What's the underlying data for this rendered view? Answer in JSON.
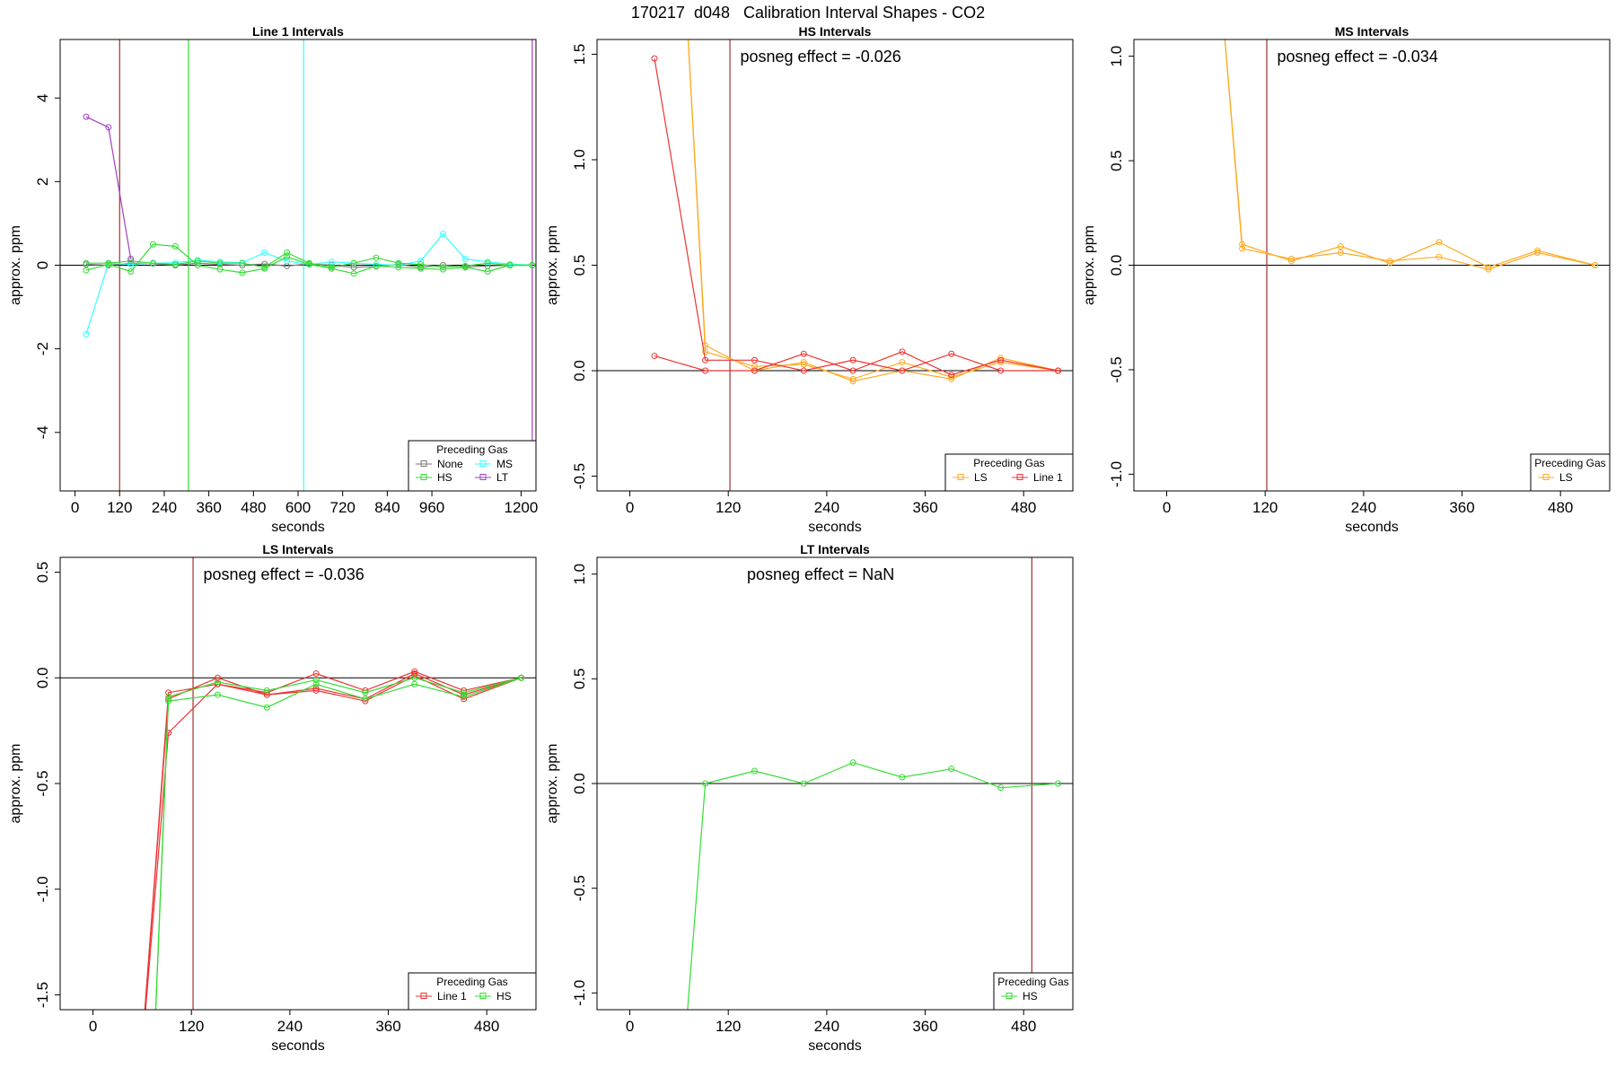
{
  "page_title": "170217  d048   Calibration Interval Shapes - CO2",
  "chart_data": [
    {
      "type": "line",
      "title": "Line 1 Intervals",
      "xlabel": "seconds",
      "ylabel": "approx. ppm",
      "xlim": [
        -40,
        1240
      ],
      "ylim": [
        -5.4,
        5.4
      ],
      "xticks": [
        0,
        120,
        240,
        360,
        480,
        600,
        720,
        840,
        960,
        1200
      ],
      "yticks": [
        -4,
        -2,
        0,
        2,
        4
      ],
      "annotation": "",
      "hline": 0,
      "vlines": [
        {
          "x": 120,
          "color": "#a03030"
        },
        {
          "x": 305,
          "color": "#33dd33"
        },
        {
          "x": 615,
          "color": "#33ffff"
        },
        {
          "x": 1230,
          "color": "#a040c0"
        }
      ],
      "legend": {
        "title": "Preceding Gas",
        "position": "bottom-right",
        "columns": 2,
        "entries": [
          "None",
          "MS",
          "HS",
          "LT"
        ]
      },
      "series": [
        {
          "name": "None",
          "color": "#777777",
          "x": [
            30,
            90,
            150,
            210,
            270,
            330,
            390,
            450,
            510,
            570,
            630,
            690,
            750,
            810,
            870,
            930,
            990,
            1050,
            1110,
            1170,
            1230
          ],
          "y": [
            0.02,
            0.0,
            0.05,
            0.04,
            0.0,
            0.05,
            0.02,
            0.0,
            0.03,
            -0.02,
            0.03,
            0.0,
            -0.05,
            -0.03,
            0.02,
            -0.05,
            0.0,
            -0.04,
            -0.02,
            0.0,
            0.0
          ]
        },
        {
          "name": "MS",
          "color": "#33ffff",
          "x": [
            30,
            90,
            150,
            210,
            270,
            330,
            390,
            450,
            510,
            570,
            630,
            690,
            750,
            810,
            870,
            930,
            990,
            1050,
            1110,
            1170,
            1230
          ],
          "y": [
            -1.65,
            0.05,
            0.02,
            0.05,
            0.06,
            0.12,
            0.08,
            0.06,
            0.3,
            0.1,
            0.02,
            0.08,
            0.05,
            0.02,
            0.0,
            0.1,
            0.75,
            0.15,
            0.08,
            0.03,
            0.0
          ]
        },
        {
          "name": "HS",
          "color": "#33dd33",
          "x": [
            30,
            90,
            150,
            210,
            270,
            330,
            390,
            450,
            510,
            570,
            630,
            690,
            750,
            810,
            870,
            930,
            990,
            1050,
            1110,
            1170,
            1230
          ],
          "y": [
            0.05,
            0.05,
            0.1,
            0.05,
            0.02,
            0.1,
            0.05,
            0.05,
            -0.05,
            0.3,
            0.05,
            -0.05,
            0.05,
            0.18,
            0.05,
            0.02,
            -0.05,
            -0.02,
            0.05,
            0.0,
            0.0
          ]
        },
        {
          "name": "HS",
          "color": "#33dd33",
          "x": [
            30,
            90,
            150,
            210,
            270,
            330,
            390,
            450,
            510,
            570,
            630,
            690,
            750,
            810,
            870,
            930,
            990,
            1050,
            1110,
            1170,
            1230
          ],
          "y": [
            -0.12,
            0.02,
            -0.15,
            0.5,
            0.45,
            0.0,
            -0.1,
            -0.18,
            -0.08,
            0.2,
            0.02,
            -0.08,
            -0.2,
            -0.02,
            -0.05,
            -0.08,
            -0.1,
            -0.05,
            -0.15,
            0.0,
            0.0
          ]
        },
        {
          "name": "LT",
          "color": "#a040c0",
          "x": [
            30,
            90,
            150
          ],
          "y": [
            3.55,
            3.3,
            0.15
          ]
        }
      ]
    },
    {
      "type": "line",
      "title": "HS Intervals",
      "xlabel": "seconds",
      "ylabel": "approx. ppm",
      "xlim": [
        -40,
        540
      ],
      "ylim": [
        -0.57,
        1.57
      ],
      "xticks": [
        0,
        120,
        240,
        360,
        480
      ],
      "yticks": [
        -0.5,
        0.0,
        0.5,
        1.0,
        1.5
      ],
      "annotation": "posneg effect = -0.026",
      "hline": 0,
      "vlines": [
        {
          "x": 122,
          "color": "#a03030"
        }
      ],
      "legend": {
        "title": "Preceding Gas",
        "position": "bottom-right",
        "columns": 2,
        "entries": [
          "LS",
          "Line 1"
        ]
      },
      "series": [
        {
          "name": "LS",
          "color": "#ffaa22",
          "x": [
            65,
            92,
            152,
            212,
            272,
            332,
            392,
            452,
            522
          ],
          "y": [
            2.0,
            0.12,
            0.0,
            0.04,
            -0.05,
            0.0,
            -0.04,
            0.06,
            0.0
          ]
        },
        {
          "name": "LS",
          "color": "#ffaa22",
          "x": [
            65,
            92,
            152,
            212,
            272,
            332,
            392,
            452,
            522
          ],
          "y": [
            2.0,
            0.09,
            0.02,
            0.03,
            -0.04,
            0.04,
            -0.03,
            0.04,
            0.0
          ]
        },
        {
          "name": "Line 1",
          "color": "#ee3333",
          "x": [
            30,
            92,
            152,
            212,
            272,
            332,
            392,
            452,
            522
          ],
          "y": [
            1.48,
            0.05,
            0.05,
            0.0,
            0.05,
            0.0,
            0.08,
            0.0,
            0.0
          ]
        },
        {
          "name": "Line 1",
          "color": "#ee3333",
          "x": [
            30,
            92,
            152,
            212,
            272,
            332,
            392,
            452,
            522
          ],
          "y": [
            0.07,
            0.0,
            0.0,
            0.08,
            0.0,
            0.09,
            -0.02,
            0.05,
            0.0
          ]
        }
      ]
    },
    {
      "type": "line",
      "title": "MS Intervals",
      "xlabel": "seconds",
      "ylabel": "approx. ppm",
      "xlim": [
        -40,
        540
      ],
      "ylim": [
        -1.08,
        1.08
      ],
      "xticks": [
        0,
        120,
        240,
        360,
        480
      ],
      "yticks": [
        -1.0,
        -0.5,
        0.0,
        0.5,
        1.0
      ],
      "annotation": "posneg effect = -0.034",
      "hline": 0,
      "vlines": [
        {
          "x": 122,
          "color": "#a03030"
        }
      ],
      "legend": {
        "title": "Preceding Gas",
        "position": "bottom-right",
        "columns": 1,
        "entries": [
          "LS"
        ]
      },
      "series": [
        {
          "name": "LS",
          "color": "#ffaa22",
          "x": [
            62,
            92,
            152,
            212,
            272,
            332,
            392,
            452,
            522
          ],
          "y": [
            1.5,
            0.1,
            0.02,
            0.09,
            0.01,
            0.11,
            -0.01,
            0.07,
            0.0
          ]
        },
        {
          "name": "LS",
          "color": "#ffaa22",
          "x": [
            62,
            92,
            152,
            212,
            272,
            332,
            392,
            452,
            522
          ],
          "y": [
            1.5,
            0.08,
            0.03,
            0.06,
            0.02,
            0.04,
            -0.02,
            0.06,
            0.0
          ]
        }
      ]
    },
    {
      "type": "line",
      "title": "LS Intervals",
      "xlabel": "seconds",
      "ylabel": "approx. ppm",
      "xlim": [
        -40,
        540
      ],
      "ylim": [
        -1.57,
        0.57
      ],
      "xticks": [
        0,
        120,
        240,
        360,
        480
      ],
      "yticks": [
        -1.5,
        -1.0,
        -0.5,
        0.0,
        0.5
      ],
      "annotation": "posneg effect = -0.036",
      "hline": 0,
      "vlines": [
        {
          "x": 122,
          "color": "#a03030"
        }
      ],
      "legend": {
        "title": "Preceding Gas",
        "position": "bottom-right",
        "columns": 2,
        "entries": [
          "Line 1",
          "HS"
        ]
      },
      "series": [
        {
          "name": "Line 1",
          "color": "#ee3333",
          "x": [
            55,
            92,
            152,
            212,
            272,
            332,
            392,
            452,
            522
          ],
          "y": [
            -2.0,
            -0.07,
            -0.03,
            -0.07,
            0.02,
            -0.06,
            0.03,
            -0.06,
            0.0
          ]
        },
        {
          "name": "Line 1",
          "color": "#ee3333",
          "x": [
            55,
            92,
            152,
            212,
            272,
            332,
            392,
            452,
            522
          ],
          "y": [
            -2.0,
            -0.1,
            0.0,
            -0.08,
            -0.05,
            -0.1,
            0.02,
            -0.08,
            0.0
          ]
        },
        {
          "name": "Line 1",
          "color": "#ee3333",
          "x": [
            55,
            92,
            152,
            212,
            272,
            332,
            392,
            452,
            522
          ],
          "y": [
            -2.0,
            -0.26,
            -0.03,
            -0.08,
            -0.06,
            -0.11,
            0.01,
            -0.1,
            0.0
          ]
        },
        {
          "name": "HS",
          "color": "#33dd33",
          "x": [
            72,
            92,
            152,
            212,
            272,
            332,
            392,
            452,
            522
          ],
          "y": [
            -2.0,
            -0.11,
            -0.08,
            -0.14,
            -0.03,
            -0.1,
            -0.03,
            -0.09,
            0.0
          ]
        },
        {
          "name": "HS",
          "color": "#33dd33",
          "x": [
            72,
            92,
            152,
            212,
            272,
            332,
            392,
            452,
            522
          ],
          "y": [
            -2.0,
            -0.09,
            -0.02,
            -0.06,
            -0.01,
            -0.07,
            0.0,
            -0.07,
            0.0
          ]
        }
      ]
    },
    {
      "type": "line",
      "title": "LT Intervals",
      "xlabel": "seconds",
      "ylabel": "approx. ppm",
      "xlim": [
        -40,
        540
      ],
      "ylim": [
        -1.08,
        1.08
      ],
      "xticks": [
        0,
        120,
        240,
        360,
        480
      ],
      "yticks": [
        -1.0,
        -0.5,
        0.0,
        0.5,
        1.0
      ],
      "annotation": "posneg effect = NaN",
      "hline": 0,
      "vlines": [
        {
          "x": 490,
          "color": "#a03030"
        }
      ],
      "legend": {
        "title": "Preceding Gas",
        "position": "bottom-right",
        "columns": 1,
        "entries": [
          "HS"
        ]
      },
      "series": [
        {
          "name": "HS",
          "color": "#33dd33",
          "x": [
            62,
            92,
            152,
            212,
            272,
            332,
            392,
            452,
            522
          ],
          "y": [
            -1.5,
            0.0,
            0.06,
            0.0,
            0.1,
            0.03,
            0.07,
            -0.02,
            0.0
          ]
        }
      ]
    }
  ]
}
